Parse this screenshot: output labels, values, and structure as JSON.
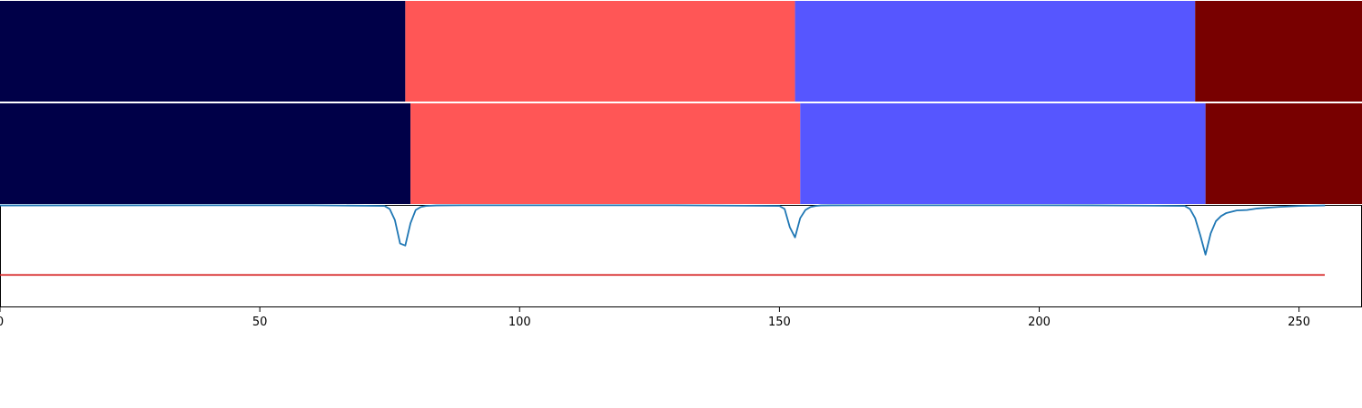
{
  "chart_data": {
    "type": "segmentation-timeline",
    "xlim": [
      0,
      256
    ],
    "x_ticks": [
      0,
      50,
      100,
      150,
      200,
      250
    ],
    "x_tick_labels": [
      "0",
      "50",
      "100",
      "150",
      "200",
      "250"
    ],
    "colors": {
      "class_0": "#000048",
      "class_1": "#ff5656",
      "class_2": "#5656ff",
      "class_3": "#780000",
      "curve": "#1f77b4",
      "threshold": "#d62728"
    },
    "panels": [
      {
        "type": "segmentation_bar",
        "segments": [
          {
            "start": 0,
            "end": 78,
            "class": "class_0"
          },
          {
            "start": 78,
            "end": 153,
            "class": "class_1"
          },
          {
            "start": 153,
            "end": 230,
            "class": "class_2"
          },
          {
            "start": 230,
            "end": 256,
            "class": "class_3"
          }
        ]
      },
      {
        "type": "segmentation_bar",
        "segments": [
          {
            "start": 0,
            "end": 79,
            "class": "class_0"
          },
          {
            "start": 79,
            "end": 154,
            "class": "class_1"
          },
          {
            "start": 154,
            "end": 232,
            "class": "class_2"
          },
          {
            "start": 232,
            "end": 256,
            "class": "class_3"
          }
        ]
      },
      {
        "type": "line",
        "ylim": [
          0,
          1
        ],
        "threshold": 0.31,
        "x": [
          0,
          20,
          40,
          60,
          74,
          75,
          76,
          77,
          78,
          79,
          80,
          81,
          82,
          84,
          90,
          110,
          130,
          150,
          151,
          152,
          153,
          154,
          155,
          156,
          157,
          158,
          160,
          170,
          190,
          210,
          228,
          229,
          230,
          231,
          232,
          233,
          234,
          235,
          236,
          238,
          240,
          242,
          246,
          250,
          255
        ],
        "y": [
          0.995,
          0.996,
          0.997,
          0.997,
          0.99,
          0.96,
          0.85,
          0.62,
          0.6,
          0.82,
          0.95,
          0.98,
          0.99,
          0.995,
          0.997,
          0.997,
          0.997,
          0.99,
          0.96,
          0.78,
          0.68,
          0.87,
          0.95,
          0.98,
          0.99,
          0.995,
          0.996,
          0.997,
          0.997,
          0.996,
          0.99,
          0.96,
          0.87,
          0.7,
          0.51,
          0.72,
          0.84,
          0.89,
          0.92,
          0.945,
          0.95,
          0.965,
          0.98,
          0.99,
          0.995
        ]
      }
    ]
  }
}
